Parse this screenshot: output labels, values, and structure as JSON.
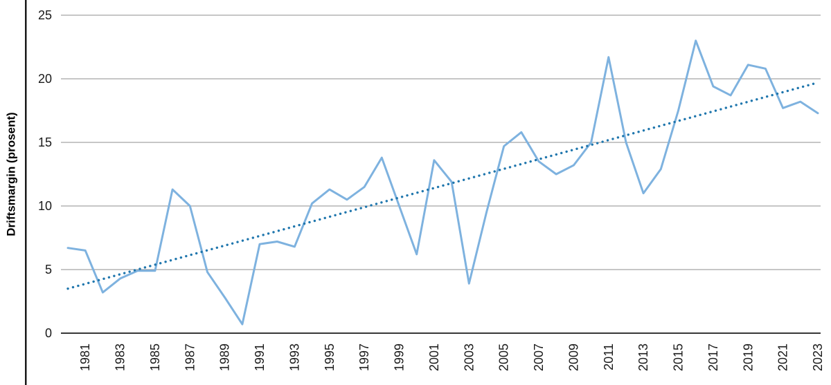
{
  "chart_data": {
    "type": "line",
    "title": "",
    "xlabel": "",
    "ylabel": "Driftsmargin (prosent)",
    "ylim": [
      0,
      25
    ],
    "yticks": [
      0,
      5,
      10,
      15,
      20,
      25
    ],
    "x_start": 1980,
    "x_end": 2023,
    "xtick_labels": [
      "1981",
      "1983",
      "1985",
      "1987",
      "1989",
      "1991",
      "1993",
      "1995",
      "1997",
      "1999",
      "2001",
      "2003",
      "2005",
      "2007",
      "2009",
      "2011",
      "2013",
      "2015",
      "2017",
      "2019",
      "2021",
      "2023"
    ],
    "grid": "horizontal",
    "legend": "none",
    "axis_color": "#1a1a1a",
    "grid_color": "#8c8c8c",
    "series": [
      {
        "name": "Driftsmargin",
        "style": "solid",
        "color": "#7EB2DF",
        "values": [
          6.7,
          6.5,
          3.2,
          4.3,
          4.9,
          4.9,
          11.3,
          10.0,
          4.8,
          2.8,
          0.7,
          7.0,
          7.2,
          6.8,
          10.2,
          11.3,
          10.5,
          11.5,
          13.8,
          10.0,
          6.2,
          13.6,
          11.9,
          3.9,
          9.5,
          14.7,
          15.8,
          13.5,
          12.5,
          13.2,
          15.0,
          21.7,
          15.0,
          11.0,
          12.9,
          17.5,
          23.0,
          19.4,
          18.7,
          21.1,
          20.8,
          17.7,
          18.2,
          17.3
        ]
      },
      {
        "name": "Trend",
        "style": "dotted",
        "color": "#1F76AD",
        "start_value": 3.5,
        "end_value": 19.7
      }
    ]
  }
}
